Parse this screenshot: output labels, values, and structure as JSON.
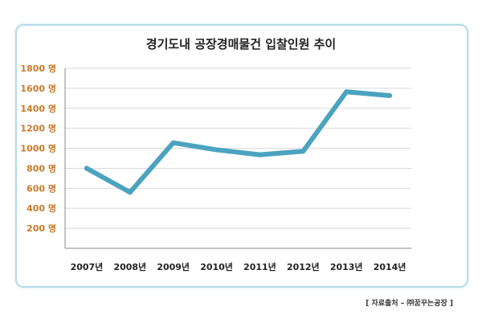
{
  "chart_data": {
    "type": "line",
    "title": "경기도내 공장경매물건 입찰인원 추이",
    "categories": [
      "2007년",
      "2008년",
      "2009년",
      "2010년",
      "2011년",
      "2012년",
      "2013년",
      "2014년"
    ],
    "series": [
      {
        "values": [
          800,
          560,
          1055,
          985,
          935,
          970,
          1565,
          1527
        ]
      }
    ],
    "ylim": [
      0,
      1800
    ],
    "yticks": [
      200,
      400,
      600,
      800,
      1000,
      1200,
      1400,
      1600,
      1800
    ],
    "ytick_labels": [
      "200 명",
      "400 명",
      "600 명",
      "800 명",
      "1000 명",
      "1200 명",
      "1400 명",
      "1600 명",
      "1800 명"
    ],
    "grid": true,
    "line_color": "#4ba3bf",
    "ytick_color": "#c87a2a"
  },
  "source": "[ 자료출처 – ㈜꿈꾸는공장 ]"
}
